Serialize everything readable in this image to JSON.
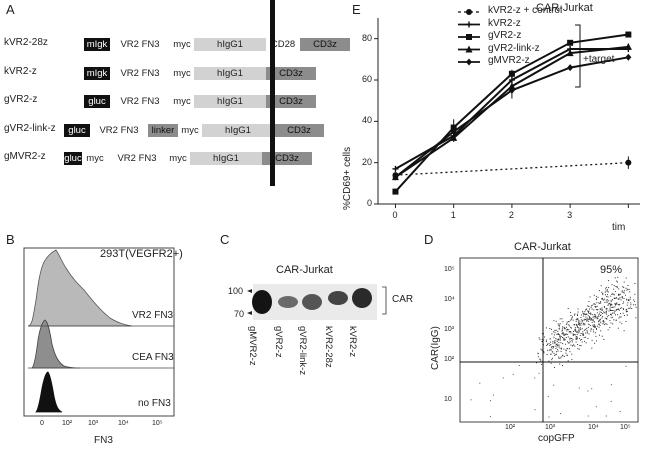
{
  "panels": {
    "a": "A",
    "b": "B",
    "c": "C",
    "d": "D",
    "e": "E"
  },
  "constructs": [
    {
      "name": "kVR2-28z",
      "segments": [
        [
          "mIgk",
          "black"
        ],
        [
          "VR2 FN3",
          "white"
        ],
        [
          "myc",
          "white"
        ],
        [
          "hIgG1",
          "lgray"
        ],
        [
          "CD28",
          "white"
        ],
        [
          "CD3z",
          "dgray"
        ]
      ]
    },
    {
      "name": "kVR2-z",
      "segments": [
        [
          "mIgk",
          "black"
        ],
        [
          "VR2 FN3",
          "white"
        ],
        [
          "myc",
          "white"
        ],
        [
          "hIgG1",
          "lgray"
        ],
        [
          "CD3z",
          "dgray"
        ]
      ]
    },
    {
      "name": "gVR2-z",
      "segments": [
        [
          "gluc",
          "black"
        ],
        [
          "VR2 FN3",
          "white"
        ],
        [
          "myc",
          "white"
        ],
        [
          "hIgG1",
          "lgray"
        ],
        [
          "CD3z",
          "dgray"
        ]
      ]
    },
    {
      "name": "gVR2-link-z",
      "segments": [
        [
          "gluc",
          "black"
        ],
        [
          "VR2 FN3",
          "white"
        ],
        [
          "linker",
          "dgray"
        ],
        [
          "myc",
          "white"
        ],
        [
          "hIgG1",
          "lgray"
        ],
        [
          "CD3z",
          "dgray"
        ]
      ]
    },
    {
      "name": "gMVR2-z",
      "segments": [
        [
          "gluc",
          "black"
        ],
        [
          "myc",
          "white"
        ],
        [
          "VR2 FN3",
          "white"
        ],
        [
          "myc",
          "white"
        ],
        [
          "hIgG1",
          "lgray"
        ],
        [
          "CD3z",
          "dgray"
        ]
      ]
    }
  ],
  "flow_b": {
    "title": "293T(VEGFR2+)",
    "rows": [
      "VR2 FN3",
      "CEA FN3",
      "no FN3"
    ],
    "xlabel": "FN3",
    "ticks": [
      "0",
      "10²",
      "10³",
      "10⁴",
      "10⁵"
    ]
  },
  "blot": {
    "title": "CAR-Jurkat",
    "markers": [
      "100",
      "70"
    ],
    "band_label": "CAR",
    "lanes": [
      "gMVR2-z",
      "gVR2-z",
      "gVR2-link-z",
      "kVR2-28z",
      "kVR2-z"
    ]
  },
  "scatter_d": {
    "title": "CAR-Jurkat",
    "percent": "95%",
    "xlabel": "copGFP",
    "ylabel": "CAR(IgG)",
    "xticks": [
      "10²",
      "10³",
      "10⁴",
      "10⁵"
    ],
    "yticks": [
      "10⁵",
      "10⁴",
      "10³",
      "10²",
      "10"
    ]
  },
  "chart_data": {
    "type": "line",
    "title": "CAR-Jurkat",
    "xlabel": "tim",
    "ylabel": "%CD69+ cells",
    "x": [
      0,
      1,
      2,
      3,
      4
    ],
    "xticks": [
      "0",
      "1",
      "2",
      "3"
    ],
    "yticks": [
      0,
      20,
      40,
      60,
      80
    ],
    "xlim": [
      -0.3,
      4.2
    ],
    "ylim": [
      0,
      90
    ],
    "bracket_label": "+target",
    "series": [
      {
        "name": "kVR2-z + control",
        "marker": "circle",
        "dashed": true,
        "values": [
          14,
          null,
          null,
          null,
          20
        ]
      },
      {
        "name": "kVR2-z",
        "marker": "plus",
        "dashed": false,
        "values": [
          17,
          33,
          60,
          75,
          75
        ]
      },
      {
        "name": "gVR2-z",
        "marker": "square",
        "dashed": false,
        "values": [
          6,
          37,
          63,
          78,
          82
        ]
      },
      {
        "name": "gVR2-link-z",
        "marker": "triangle",
        "dashed": false,
        "values": [
          13,
          32,
          57,
          73,
          76
        ]
      },
      {
        "name": "gMVR2-z",
        "marker": "diamond",
        "dashed": false,
        "values": [
          13,
          35,
          55,
          66,
          71
        ]
      }
    ]
  }
}
